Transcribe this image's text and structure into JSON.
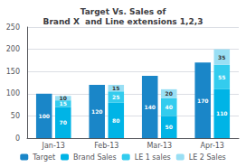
{
  "chart_data": {
    "type": "bar",
    "title": "Target Vs. Sales of\nBrand X  and Line extensions 1,2,3",
    "categories": [
      "Jan-13",
      "Feb-13",
      "Mar-13",
      "Apr-13"
    ],
    "series": [
      {
        "name": "Target",
        "color": "#1a86c8",
        "values": [
          100,
          120,
          140,
          170
        ]
      },
      {
        "name": "Brand Sales",
        "color": "#00b4e6",
        "values": [
          70,
          80,
          50,
          110
        ],
        "stacked": true
      },
      {
        "name": "LE 1 sales",
        "color": "#33ccee",
        "values": [
          15,
          25,
          40,
          55
        ],
        "stacked": true
      },
      {
        "name": "LE 2 Sales",
        "color": "#99dff4",
        "values": [
          10,
          15,
          20,
          35
        ],
        "stacked": true
      }
    ],
    "ylim": [
      0,
      250
    ],
    "yticks": [
      0,
      50,
      100,
      150,
      200,
      250
    ],
    "grid": true,
    "data_labels": true,
    "legend": "bottom"
  }
}
